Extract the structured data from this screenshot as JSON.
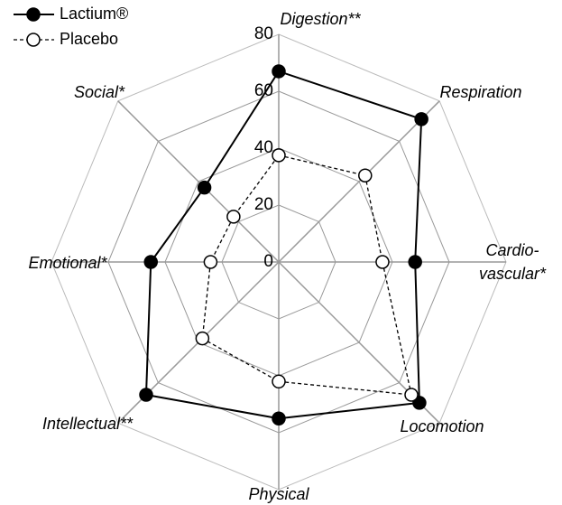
{
  "chart_data": {
    "type": "radar",
    "categories": [
      "Digestion**",
      "Respiration",
      "Cardio-\nvascular*",
      "Locomotion",
      "Physical",
      "Intellectual**",
      "Emotional*",
      "Social*"
    ],
    "series": [
      {
        "name": "Lactium®",
        "color": "#000000",
        "marker_fill": "#000000",
        "dashed": false,
        "values": [
          67,
          71,
          48,
          70,
          55,
          66,
          45,
          37
        ]
      },
      {
        "name": "Placebo",
        "color": "#000000",
        "marker_fill": "#ffffff",
        "dashed": true,
        "values": [
          37.5,
          43,
          36.5,
          66,
          42,
          38,
          24,
          22.5
        ]
      }
    ],
    "rlim": [
      0,
      80
    ],
    "rticks": [
      0,
      20,
      40,
      60,
      80
    ],
    "grid": true,
    "legend": "upper left"
  }
}
